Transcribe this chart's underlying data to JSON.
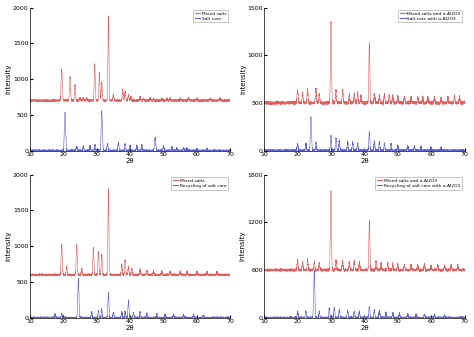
{
  "xlim": [
    10,
    70
  ],
  "xlabel": "2θ",
  "ylabel": "Intensity",
  "panels": [
    {
      "ylim": [
        0,
        2000
      ],
      "yticks": [
        0,
        500,
        1000,
        1500,
        2000
      ],
      "legend": [
        "Mixed salts",
        "Salt core"
      ],
      "red_baseline": 700,
      "red_color": "#e06060",
      "blue_color": "#6060d0"
    },
    {
      "ylim": [
        0,
        1500
      ],
      "yticks": [
        0,
        500,
        1000,
        1500
      ],
      "legend": [
        "Mixed salts and α-Al2O3",
        "Salt core with α-Al2O3"
      ],
      "red_baseline": 500,
      "red_color": "#e06060",
      "blue_color": "#6060d0"
    },
    {
      "ylim": [
        0,
        2000
      ],
      "yticks": [
        0,
        500,
        1000,
        1500,
        2000
      ],
      "legend": [
        "Mixed salts",
        "Recycling of salt core"
      ],
      "red_baseline": 600,
      "red_color": "#e06060",
      "blue_color": "#6060d0"
    },
    {
      "ylim": [
        0,
        1800
      ],
      "yticks": [
        0,
        600,
        1200,
        1800
      ],
      "legend": [
        "Mixed salts and α-Al2O3",
        "Recycling of salt core with α-Al2O3"
      ],
      "red_baseline": 600,
      "red_color": "#e06060",
      "blue_color": "#6060d0"
    }
  ]
}
